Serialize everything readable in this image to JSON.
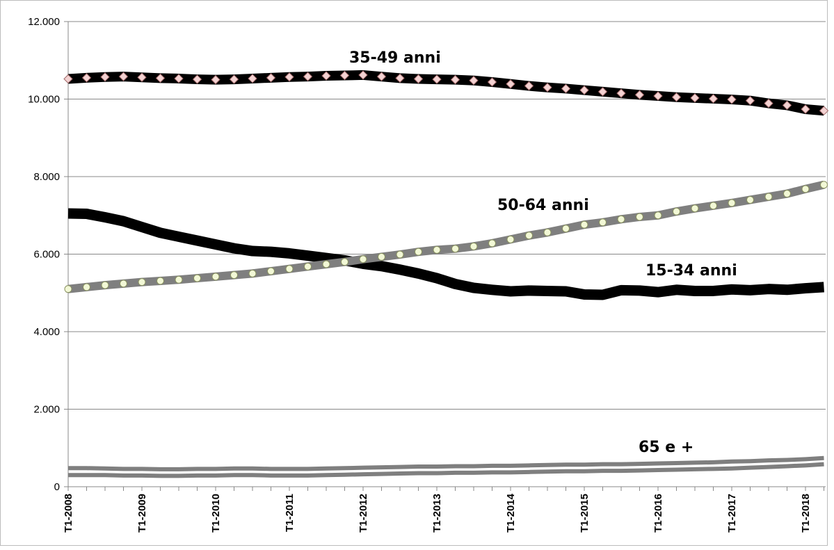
{
  "chart_data": {
    "type": "line",
    "categories": [
      "T1-2008",
      null,
      null,
      null,
      "T1-2009",
      null,
      null,
      null,
      "T1-2010",
      null,
      null,
      null,
      "T1-2011",
      null,
      null,
      null,
      "T1-2012",
      null,
      null,
      null,
      "T1-2013",
      null,
      null,
      null,
      "T1-2014",
      null,
      null,
      null,
      "T1-2015",
      null,
      null,
      null,
      "T1-2016",
      null,
      null,
      null,
      "T1-2017",
      null,
      null,
      null,
      "T1-2018",
      null
    ],
    "series": [
      {
        "name": "35-49 anni",
        "color": "#000000",
        "marker": "diamond",
        "marker_color": "#f3d2d2",
        "values": [
          10520,
          10550,
          10570,
          10580,
          10560,
          10540,
          10530,
          10510,
          10500,
          10510,
          10530,
          10550,
          10570,
          10580,
          10600,
          10610,
          10620,
          10580,
          10540,
          10520,
          10510,
          10500,
          10480,
          10440,
          10390,
          10340,
          10300,
          10270,
          10230,
          10190,
          10150,
          10110,
          10080,
          10050,
          10030,
          10010,
          9990,
          9960,
          9890,
          9840,
          9740,
          9700
        ]
      },
      {
        "name": "50-64 anni",
        "color": "#7f7f7f",
        "marker": "circle",
        "marker_color": "#f2f8d6",
        "values": [
          5100,
          5150,
          5200,
          5240,
          5280,
          5310,
          5340,
          5380,
          5420,
          5460,
          5500,
          5560,
          5620,
          5680,
          5740,
          5800,
          5870,
          5930,
          5990,
          6060,
          6110,
          6140,
          6200,
          6280,
          6380,
          6480,
          6560,
          6660,
          6760,
          6820,
          6900,
          6960,
          7000,
          7100,
          7180,
          7250,
          7320,
          7400,
          7480,
          7560,
          7680,
          7790
        ]
      },
      {
        "name": "15-34 anni",
        "color": "#000000",
        "values": [
          7050,
          7040,
          6950,
          6850,
          6700,
          6550,
          6450,
          6350,
          6250,
          6150,
          6080,
          6060,
          6020,
          5960,
          5900,
          5840,
          5750,
          5690,
          5600,
          5500,
          5380,
          5230,
          5130,
          5080,
          5040,
          5060,
          5050,
          5040,
          4960,
          4950,
          5070,
          5060,
          5020,
          5080,
          5050,
          5050,
          5090,
          5070,
          5100,
          5080,
          5120,
          5150
        ]
      },
      {
        "name": "65 e +",
        "color": "#7f7f7f",
        "values": [
          480,
          480,
          470,
          460,
          460,
          450,
          450,
          460,
          460,
          470,
          470,
          460,
          460,
          460,
          470,
          480,
          490,
          500,
          510,
          520,
          520,
          530,
          530,
          540,
          540,
          550,
          560,
          570,
          570,
          580,
          580,
          590,
          600,
          610,
          620,
          630,
          650,
          660,
          680,
          690,
          710,
          740
        ]
      },
      {
        "color": "#7f7f7f",
        "values": [
          300,
          300,
          300,
          290,
          290,
          280,
          280,
          290,
          290,
          300,
          300,
          290,
          290,
          290,
          300,
          310,
          320,
          330,
          340,
          350,
          350,
          360,
          360,
          370,
          370,
          380,
          390,
          400,
          400,
          410,
          410,
          420,
          430,
          440,
          450,
          460,
          470,
          490,
          510,
          530,
          550,
          580
        ]
      }
    ],
    "ylim": [
      0,
      12000
    ],
    "yticks": [
      0,
      {
        "value": 2000,
        "label": "2.000"
      },
      {
        "value": 4000,
        "label": "4.000"
      },
      {
        "value": 6000,
        "label": "6.000"
      },
      {
        "value": 8000,
        "label": "8.000"
      },
      {
        "value": 10000,
        "label": "10.000"
      },
      {
        "value": 12000,
        "label": "12.000"
      }
    ],
    "grid": true
  }
}
